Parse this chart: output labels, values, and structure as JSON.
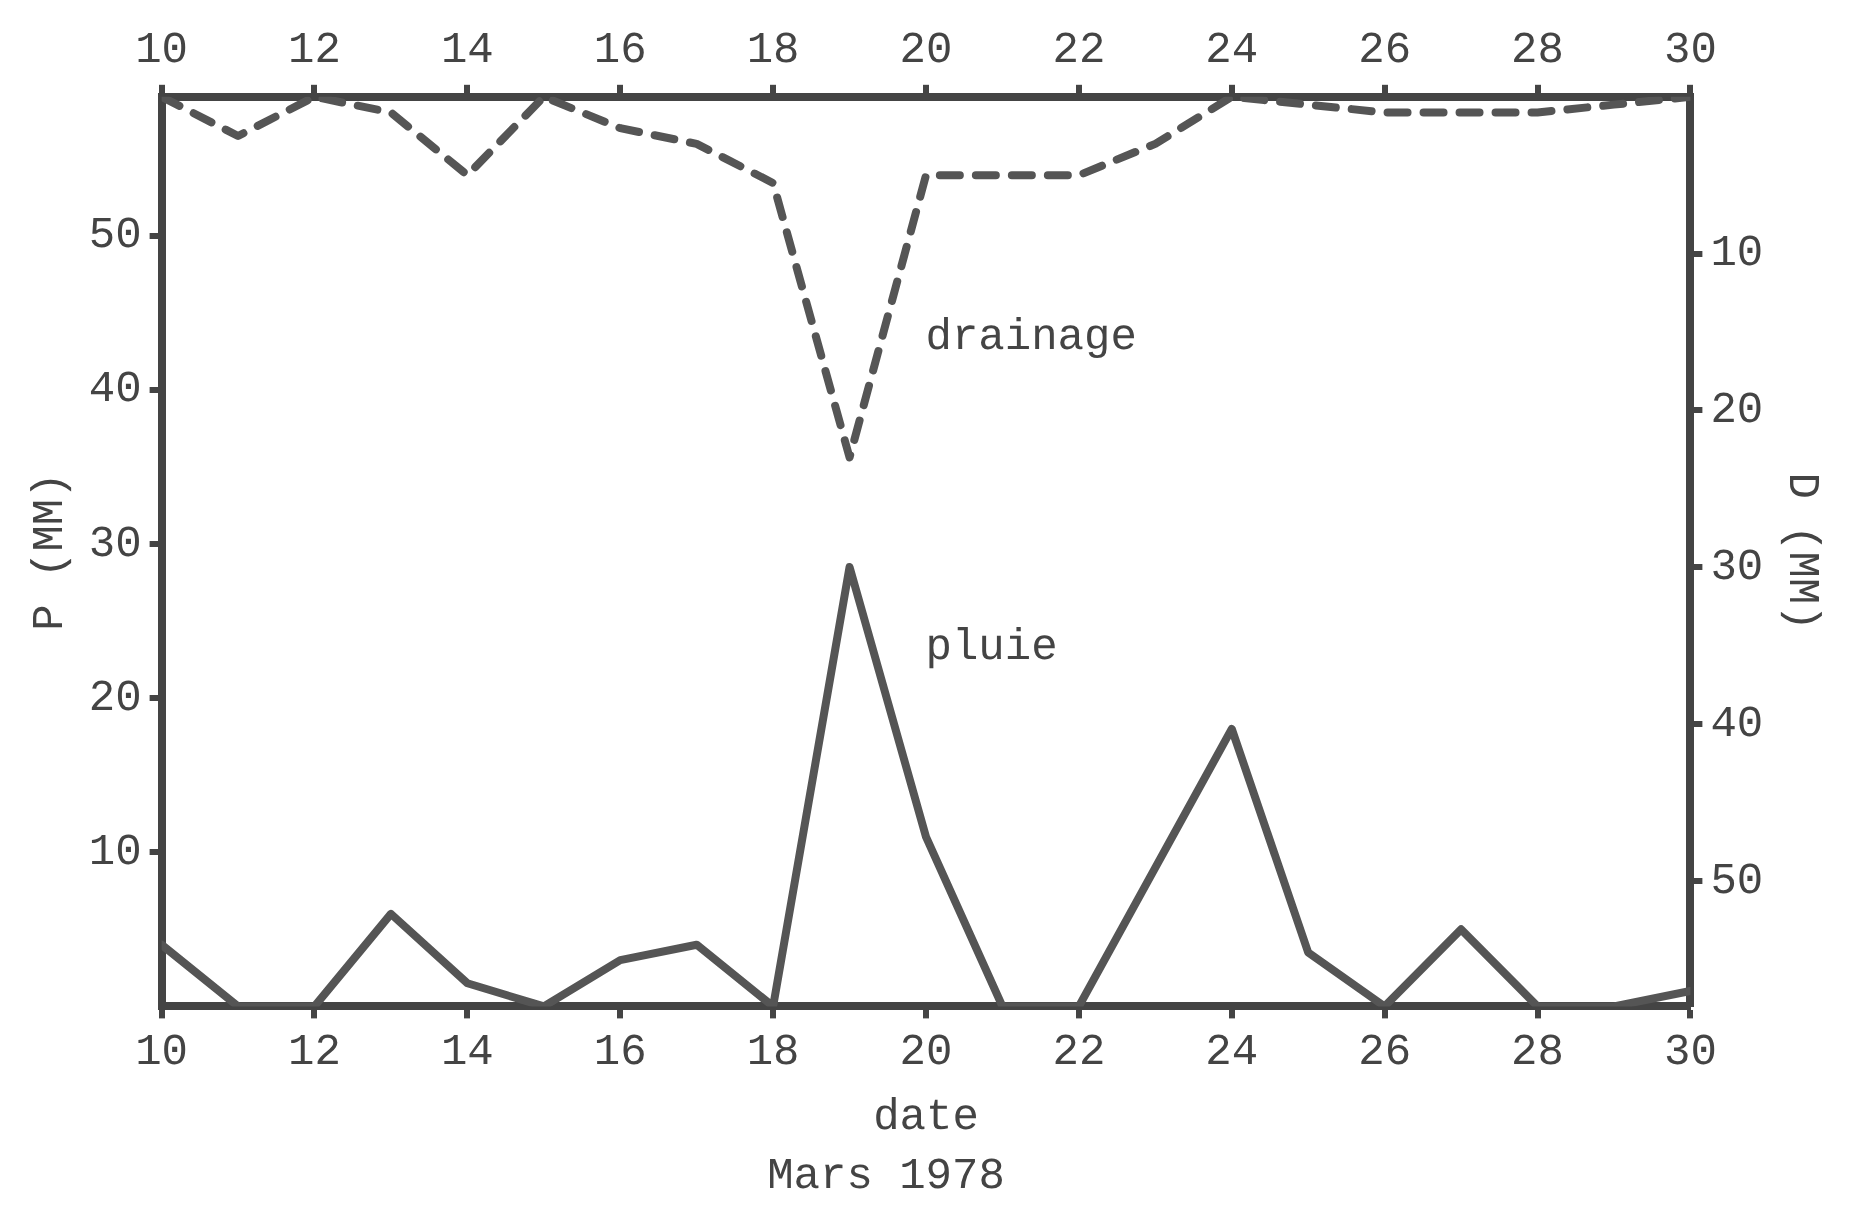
{
  "chart_data": {
    "type": "line",
    "xlabel": "date",
    "ylabel": "P (MM)",
    "y2label": "D (MM)",
    "annotations": [
      "Mars 1978"
    ],
    "x": [
      10,
      11,
      12,
      13,
      14,
      15,
      16,
      17,
      18,
      19,
      20,
      21,
      22,
      23,
      24,
      25,
      26,
      27,
      28,
      29,
      30
    ],
    "series": [
      {
        "name": "pluie",
        "color": "#555555",
        "line_style": "solid",
        "values": [
          4,
          0,
          0,
          6,
          1.5,
          0,
          3,
          4,
          0,
          28.5,
          11,
          0,
          0,
          9,
          18,
          3.5,
          0,
          5,
          0,
          0,
          1
        ]
      },
      {
        "name": "drainage",
        "color": "#555555",
        "line_style": "dashed",
        "axis": "y2",
        "values": [
          0,
          2.5,
          0,
          1,
          5,
          0,
          2,
          3,
          5.5,
          23,
          5,
          5,
          5,
          3,
          0,
          0.5,
          1,
          1,
          1,
          0.5,
          0
        ]
      }
    ],
    "xlim": [
      10,
      30
    ],
    "xticks": [
      10,
      12,
      14,
      16,
      18,
      20,
      22,
      24,
      26,
      28,
      30
    ],
    "x2lim": [
      10,
      30
    ],
    "x2ticks": [
      10,
      12,
      14,
      16,
      18,
      20,
      22,
      24,
      26,
      28,
      30
    ],
    "ylim": [
      0,
      59
    ],
    "yticks": [
      10,
      20,
      30,
      40,
      50
    ],
    "y2lim": [
      58,
      0
    ],
    "y2ticks": [
      10,
      20,
      30,
      40,
      50
    ],
    "grid": false,
    "legend": false,
    "marker": "none"
  }
}
